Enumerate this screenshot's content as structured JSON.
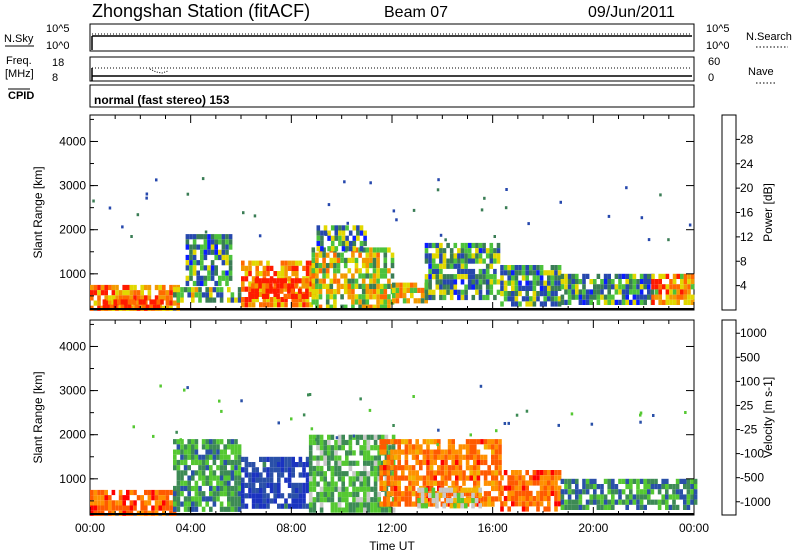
{
  "header": {
    "station": "Zhongshan Station (fitACF)",
    "beam": "Beam 07",
    "date": "09/Jun/2011"
  },
  "panel_labels": {
    "nsky": "N.Sky",
    "nsky_top": "10^5",
    "nsky_bottom": "10^0",
    "nsearch": "N.Search",
    "nsearch_top": "10^5",
    "nsearch_bottom": "10^0",
    "freq_1": "Freq.",
    "freq_2": "[MHz]",
    "freq_top": "18",
    "freq_bottom": "8",
    "nave": "Nave",
    "nave_top": "60",
    "nave_bottom": "0",
    "cpid": "CPID",
    "mode": "normal (fast stereo) 153"
  },
  "chart_data": [
    {
      "type": "heatmap",
      "title": "",
      "ylabel": "Slant Range [km]",
      "xlabel": "",
      "yticks": [
        "1000",
        "2000",
        "3000",
        "4000"
      ],
      "ylim": [
        180,
        4600
      ],
      "colorbar": {
        "label": "Power [dB]",
        "ticks": [
          "4",
          "8",
          "12",
          "16",
          "20",
          "24",
          "28"
        ],
        "range": [
          0,
          30
        ],
        "colors": [
          "#0a1cff",
          "#2648ad",
          "#3a7d55",
          "#4cc23c",
          "#e2d800",
          "#f39a00",
          "#ff6a00",
          "#ff1a00"
        ]
      },
      "regions": [
        {
          "t0": 0.0,
          "t1": 3.5,
          "r0": 200,
          "r1": 750,
          "level": 0.75
        },
        {
          "t0": 0.5,
          "t1": 2.8,
          "r0": 200,
          "r1": 420,
          "level": 0.95
        },
        {
          "t0": 3.3,
          "t1": 6.0,
          "r0": 350,
          "r1": 700,
          "level": 0.4
        },
        {
          "t0": 3.8,
          "t1": 5.6,
          "r0": 800,
          "r1": 1900,
          "level": 0.3
        },
        {
          "t0": 6.0,
          "t1": 9.0,
          "r0": 350,
          "r1": 1300,
          "level": 0.75
        },
        {
          "t0": 6.4,
          "t1": 8.6,
          "r0": 480,
          "r1": 900,
          "level": 0.95
        },
        {
          "t0": 8.8,
          "t1": 12.0,
          "r0": 300,
          "r1": 1600,
          "level": 0.55
        },
        {
          "t0": 9.0,
          "t1": 11.0,
          "r0": 1600,
          "r1": 2100,
          "level": 0.35
        },
        {
          "t0": 12.0,
          "t1": 13.5,
          "r0": 350,
          "r1": 800,
          "level": 0.6
        },
        {
          "t0": 13.3,
          "t1": 16.3,
          "r0": 450,
          "r1": 1700,
          "level": 0.35
        },
        {
          "t0": 16.3,
          "t1": 18.7,
          "r0": 300,
          "r1": 1200,
          "level": 0.35
        },
        {
          "t0": 18.7,
          "t1": 22.3,
          "r0": 300,
          "r1": 1000,
          "level": 0.3
        },
        {
          "t0": 22.3,
          "t1": 24.0,
          "r0": 300,
          "r1": 1000,
          "level": 0.7
        }
      ]
    },
    {
      "type": "heatmap",
      "title": "",
      "ylabel": "Slant Range [km]",
      "xlabel": "Time UT",
      "xticks": [
        "00:00",
        "04:00",
        "08:00",
        "12:00",
        "16:00",
        "20:00",
        "00:00"
      ],
      "yticks": [
        "1000",
        "2000",
        "3000",
        "4000"
      ],
      "ylim": [
        180,
        4600
      ],
      "colorbar": {
        "label": "Velocity [m s-1]",
        "ticks": [
          "1000",
          "500",
          "100",
          "25",
          "-25",
          "-100",
          "-500",
          "-1000"
        ],
        "range": [
          -1100,
          1100
        ],
        "colors": [
          "#ff0000",
          "#ff5a00",
          "#ff9000",
          "#f3b200",
          "#c8c8c8",
          "#55c832",
          "#3d8a55",
          "#2a50a8",
          "#1a33c0"
        ]
      },
      "regions": [
        {
          "t0": 0.0,
          "t1": 3.5,
          "r0": 200,
          "r1": 750,
          "level": -0.6
        },
        {
          "t0": 3.3,
          "t1": 6.0,
          "r0": 350,
          "r1": 1900,
          "level": 0.4
        },
        {
          "t0": 6.0,
          "t1": 8.7,
          "r0": 400,
          "r1": 1500,
          "level": 0.8
        },
        {
          "t0": 8.7,
          "t1": 12.0,
          "r0": 300,
          "r1": 2000,
          "level": 0.3
        },
        {
          "t0": 11.5,
          "t1": 16.3,
          "r0": 400,
          "r1": 1900,
          "level": -0.55
        },
        {
          "t0": 13.0,
          "t1": 15.5,
          "r0": 350,
          "r1": 800,
          "level": 0.0
        },
        {
          "t0": 16.3,
          "t1": 18.7,
          "r0": 300,
          "r1": 1200,
          "level": -0.6
        },
        {
          "t0": 18.7,
          "t1": 24.0,
          "r0": 300,
          "r1": 1000,
          "level": 0.45
        }
      ]
    }
  ]
}
